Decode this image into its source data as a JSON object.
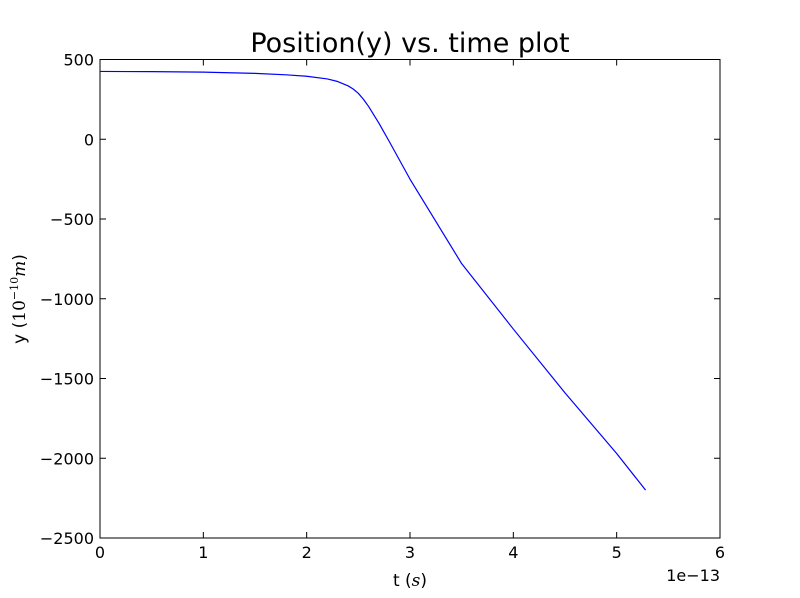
{
  "chart_data": {
    "type": "line",
    "title": "Position(y) vs. time plot",
    "xlabel": {
      "prefix": "t (",
      "math": "s",
      "suffix": ")"
    },
    "ylabel": {
      "prefix": "y (",
      "base": "10",
      "exp": "−10",
      "unit": "m",
      "suffix": ")"
    },
    "x_offset_text": "1e−13",
    "xlim": [
      0,
      6
    ],
    "ylim": [
      -2500,
      500
    ],
    "xticks": [
      0,
      1,
      2,
      3,
      4,
      5,
      6
    ],
    "yticks": [
      500,
      0,
      -500,
      -1000,
      -1500,
      -2000,
      -2500
    ],
    "ytick_labels": [
      "500",
      "0",
      "−500",
      "−1000",
      "−1500",
      "−2000",
      "−2500"
    ],
    "grid": false,
    "series": [
      {
        "color": "#0000ff",
        "x": [
          0,
          0.5,
          1.0,
          1.5,
          1.8,
          2.0,
          2.2,
          2.3,
          2.4,
          2.45,
          2.5,
          2.55,
          2.6,
          2.7,
          2.8,
          3.0,
          3.5,
          4.0,
          4.5,
          5.0,
          5.28
        ],
        "y": [
          425,
          424,
          421,
          413,
          404,
          395,
          378,
          362,
          335,
          315,
          288,
          250,
          205,
          100,
          -15,
          -250,
          -780,
          -1190,
          -1590,
          -1970,
          -2200
        ]
      }
    ]
  }
}
